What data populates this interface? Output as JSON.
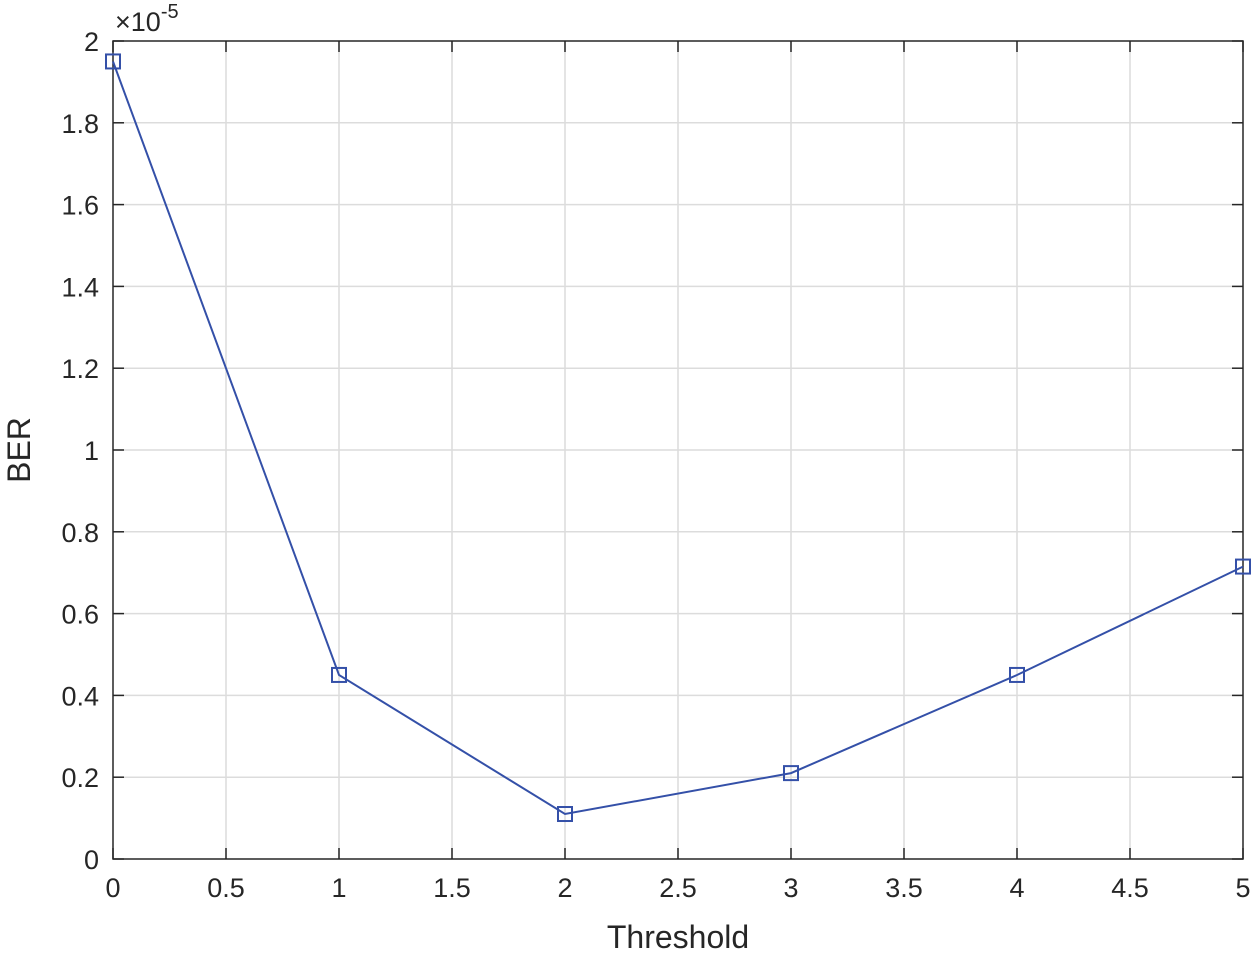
{
  "chart_data": {
    "type": "line",
    "xlabel": "Threshold",
    "ylabel": "BER",
    "xlim": [
      0,
      5
    ],
    "ylim": [
      0,
      2
    ],
    "x_ticks": [
      "0",
      "0.5",
      "1",
      "1.5",
      "2",
      "2.5",
      "3",
      "3.5",
      "4",
      "4.5",
      "5"
    ],
    "y_ticks": [
      "0",
      "0.2",
      "0.4",
      "0.6",
      "0.8",
      "1",
      "1.2",
      "1.4",
      "1.6",
      "1.8",
      "2"
    ],
    "y_multiplier": {
      "base": "×10",
      "exponent": "-5"
    },
    "grid": true,
    "series": [
      {
        "x": [
          0,
          1,
          2,
          3,
          4,
          5
        ],
        "values": [
          1.95,
          0.45,
          0.11,
          0.21,
          0.45,
          0.715
        ],
        "marker": "square",
        "color": "#3450a8"
      }
    ]
  }
}
